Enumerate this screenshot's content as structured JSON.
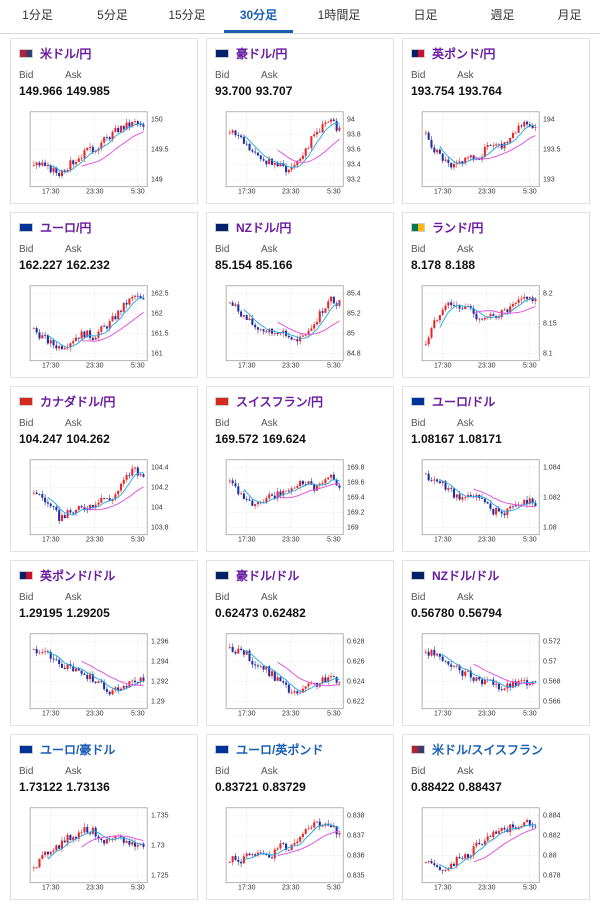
{
  "tabs": [
    {
      "label": "1分足",
      "active": false
    },
    {
      "label": "5分足",
      "active": false
    },
    {
      "label": "15分足",
      "active": false
    },
    {
      "label": "30分足",
      "active": true
    },
    {
      "label": "1時間足",
      "active": false
    },
    {
      "label": "日足",
      "active": false
    },
    {
      "label": "週足",
      "active": false
    },
    {
      "label": "月足",
      "active": false
    }
  ],
  "colors": {
    "up": "#e8262a",
    "down": "#1c2fa6",
    "ma_short": "#27a9e0",
    "ma_long": "#e14ee0",
    "accent": "#1a5fb4",
    "pair_text": "#6a1aa0"
  },
  "quote_labels": {
    "bid": "Bid",
    "ask": "Ask"
  },
  "x_ticks": [
    "17:30",
    "23:30",
    "5:30"
  ],
  "pairs": [
    {
      "name": "米ドル/円",
      "flag": "us",
      "bid": "149.966",
      "ask": "149.985",
      "y_ticks": [
        "150",
        "149.5",
        "149"
      ]
    },
    {
      "name": "豪ドル/円",
      "flag": "au",
      "bid": "93.700",
      "ask": "93.707",
      "y_ticks": [
        "94",
        "93.8",
        "93.6",
        "93.4",
        "93.2"
      ]
    },
    {
      "name": "英ポンド/円",
      "flag": "gb",
      "bid": "193.754",
      "ask": "193.764",
      "y_ticks": [
        "194",
        "193.5",
        "193"
      ]
    },
    {
      "name": "ユーロ/円",
      "flag": "eu",
      "bid": "162.227",
      "ask": "162.232",
      "y_ticks": [
        "162.5",
        "162",
        "161.5",
        "161"
      ]
    },
    {
      "name": "NZドル/円",
      "flag": "nz",
      "bid": "85.154",
      "ask": "85.166",
      "y_ticks": [
        "85.4",
        "85.2",
        "85",
        "84.8"
      ]
    },
    {
      "name": "ランド/円",
      "flag": "za",
      "bid": "8.178",
      "ask": "8.188",
      "y_ticks": [
        "8.2",
        "8.15",
        "8.1"
      ]
    },
    {
      "name": "カナダドル/円",
      "flag": "ca",
      "bid": "104.247",
      "ask": "104.262",
      "y_ticks": [
        "104.4",
        "104.2",
        "104",
        "103.8"
      ]
    },
    {
      "name": "スイスフラン/円",
      "flag": "ch",
      "bid": "169.572",
      "ask": "169.624",
      "y_ticks": [
        "169.8",
        "169.6",
        "169.4",
        "169.2",
        "169"
      ]
    },
    {
      "name": "ユーロ/ドル",
      "flag": "eu",
      "bid": "1.08167",
      "ask": "1.08171",
      "y_ticks": [
        "1.084",
        "1.082",
        "1.08"
      ]
    },
    {
      "name": "英ポンド/ドル",
      "flag": "gb",
      "bid": "1.29195",
      "ask": "1.29205",
      "y_ticks": [
        "1.296",
        "1.294",
        "1.292",
        "1.29"
      ]
    },
    {
      "name": "豪ドル/ドル",
      "flag": "au",
      "bid": "0.62473",
      "ask": "0.62482",
      "y_ticks": [
        "0.628",
        "0.626",
        "0.624",
        "0.622"
      ]
    },
    {
      "name": "NZドル/ドル",
      "flag": "nz",
      "bid": "0.56780",
      "ask": "0.56794",
      "y_ticks": [
        "0.572",
        "0.57",
        "0.568",
        "0.566"
      ]
    },
    {
      "name": "ユーロ/豪ドル",
      "flag": "eu",
      "bid": "1.73122",
      "ask": "1.73136",
      "y_ticks": [
        "1.735",
        "1.73",
        "1.725"
      ],
      "blue": true
    },
    {
      "name": "ユーロ/英ポンド",
      "flag": "eu",
      "bid": "0.83721",
      "ask": "0.83729",
      "y_ticks": [
        "0.838",
        "0.837",
        "0.836",
        "0.835"
      ],
      "blue": true
    },
    {
      "name": "米ドル/スイスフラン",
      "flag": "us",
      "bid": "0.88422",
      "ask": "0.88437",
      "y_ticks": [
        "0.884",
        "0.882",
        "0.88",
        "0.878"
      ],
      "blue": true
    }
  ]
}
